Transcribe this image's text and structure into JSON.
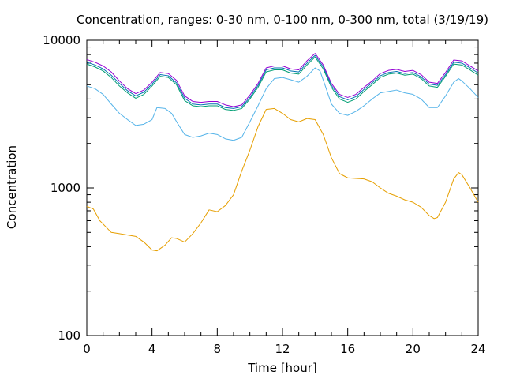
{
  "chart_data": {
    "type": "line",
    "title": "Concentration, ranges: 0-30 nm, 0-100 nm, 0-300 nm, total (3/19/19)",
    "xlabel": "Time [hour]",
    "ylabel": "Concentration",
    "xlim": [
      0,
      24
    ],
    "ylim": [
      100,
      10000
    ],
    "yscale": "log",
    "x_ticks": [
      0,
      4,
      8,
      12,
      16,
      20,
      24
    ],
    "y_ticks": [
      100,
      1000,
      10000
    ],
    "grid": false,
    "legend": "none",
    "series": [
      {
        "color": "#e69f00",
        "x": [
          0,
          0.4,
          0.8,
          1.5,
          2,
          3,
          3.5,
          4,
          4.3,
          4.8,
          5.2,
          5.5,
          6,
          6.5,
          7,
          7.5,
          8,
          8.5,
          9,
          9.5,
          10,
          10.5,
          11,
          11.5,
          12,
          12.5,
          13,
          13.5,
          14,
          14.5,
          15,
          15.5,
          16,
          16.5,
          17,
          17.5,
          18,
          18.5,
          19,
          19.5,
          20,
          20.5,
          21,
          21.3,
          21.5,
          22,
          22.5,
          22.8,
          23,
          23.5,
          24
        ],
        "y": [
          750,
          720,
          600,
          500,
          490,
          470,
          430,
          380,
          375,
          410,
          460,
          455,
          430,
          490,
          580,
          710,
          690,
          760,
          900,
          1300,
          1800,
          2600,
          3400,
          3450,
          3200,
          2900,
          2800,
          2950,
          2900,
          2300,
          1600,
          1250,
          1170,
          1160,
          1150,
          1100,
          1000,
          920,
          880,
          830,
          800,
          740,
          650,
          620,
          630,
          800,
          1150,
          1270,
          1230,
          1000,
          800
        ]
      },
      {
        "color": "#56b4e9",
        "x": [
          0,
          0.5,
          1,
          1.5,
          2,
          2.5,
          3,
          3.5,
          4,
          4.3,
          4.8,
          5.2,
          5.6,
          6,
          6.5,
          7,
          7.5,
          8,
          8.5,
          9,
          9.5,
          10,
          10.5,
          11,
          11.5,
          12,
          12.5,
          13,
          13.5,
          14,
          14.3,
          14.6,
          15,
          15.5,
          16,
          16.5,
          17,
          17.5,
          18,
          18.5,
          19,
          19.5,
          20,
          20.5,
          21,
          21.5,
          22,
          22.5,
          22.8,
          23,
          23.5,
          24
        ],
        "y": [
          4900,
          4700,
          4300,
          3700,
          3200,
          2900,
          2650,
          2700,
          2900,
          3500,
          3450,
          3200,
          2700,
          2300,
          2200,
          2250,
          2350,
          2300,
          2150,
          2100,
          2200,
          2800,
          3600,
          4700,
          5500,
          5600,
          5400,
          5200,
          5700,
          6500,
          6200,
          5000,
          3700,
          3200,
          3100,
          3300,
          3600,
          4000,
          4400,
          4500,
          4600,
          4400,
          4300,
          4000,
          3500,
          3500,
          4200,
          5200,
          5500,
          5300,
          4700,
          4100
        ]
      },
      {
        "color": "#009e73",
        "x": [
          0,
          0.5,
          1,
          1.5,
          2,
          2.5,
          3,
          3.5,
          4,
          4.5,
          5,
          5.5,
          6,
          6.5,
          7,
          7.5,
          8,
          8.5,
          9,
          9.5,
          10,
          10.5,
          11,
          11.5,
          12,
          12.5,
          13,
          13.5,
          14,
          14.5,
          15,
          15.5,
          16,
          16.5,
          17,
          17.5,
          18,
          18.5,
          19,
          19.5,
          20,
          20.5,
          21,
          21.5,
          22,
          22.5,
          23,
          23.5,
          24
        ],
        "y": [
          6900,
          6600,
          6200,
          5600,
          4900,
          4400,
          4050,
          4300,
          4900,
          5700,
          5600,
          5000,
          3900,
          3600,
          3550,
          3600,
          3600,
          3400,
          3350,
          3450,
          4000,
          4800,
          6100,
          6300,
          6300,
          6000,
          5900,
          6800,
          7700,
          6400,
          4800,
          4000,
          3800,
          4000,
          4500,
          5000,
          5600,
          5900,
          6000,
          5800,
          5900,
          5500,
          4900,
          4800,
          5700,
          6900,
          6800,
          6300,
          5800
        ]
      },
      {
        "color": "#0072b2",
        "x": [
          0,
          0.5,
          1,
          1.5,
          2,
          2.5,
          3,
          3.5,
          4,
          4.5,
          5,
          5.5,
          6,
          6.5,
          7,
          7.5,
          8,
          8.5,
          9,
          9.5,
          10,
          10.5,
          11,
          11.5,
          12,
          12.5,
          13,
          13.5,
          14,
          14.5,
          15,
          15.5,
          16,
          16.5,
          17,
          17.5,
          18,
          18.5,
          19,
          19.5,
          20,
          20.5,
          21,
          21.5,
          22,
          22.5,
          23,
          23.5,
          24
        ],
        "y": [
          7100,
          6800,
          6400,
          5800,
          5100,
          4550,
          4200,
          4450,
          5050,
          5850,
          5750,
          5150,
          4050,
          3700,
          3650,
          3700,
          3700,
          3500,
          3450,
          3550,
          4100,
          4950,
          6300,
          6500,
          6500,
          6200,
          6100,
          7000,
          7900,
          6600,
          4950,
          4150,
          3950,
          4150,
          4650,
          5150,
          5750,
          6050,
          6150,
          5950,
          6050,
          5650,
          5050,
          4950,
          5850,
          7100,
          7000,
          6500,
          6000
        ]
      },
      {
        "color": "#9400d3",
        "x": [
          0,
          0.5,
          1,
          1.5,
          2,
          2.5,
          3,
          3.5,
          4,
          4.5,
          5,
          5.5,
          6,
          6.5,
          7,
          7.5,
          8,
          8.5,
          9,
          9.5,
          10,
          10.5,
          11,
          11.5,
          12,
          12.5,
          13,
          13.5,
          14,
          14.5,
          15,
          15.5,
          16,
          16.5,
          17,
          17.5,
          18,
          18.5,
          19,
          19.5,
          20,
          20.5,
          21,
          21.5,
          22,
          22.5,
          23,
          23.5,
          24
        ],
        "y": [
          7400,
          7100,
          6700,
          6100,
          5300,
          4700,
          4350,
          4600,
          5200,
          6050,
          5950,
          5350,
          4200,
          3850,
          3800,
          3850,
          3850,
          3650,
          3550,
          3650,
          4250,
          5100,
          6500,
          6700,
          6700,
          6400,
          6300,
          7250,
          8150,
          6800,
          5100,
          4300,
          4100,
          4300,
          4800,
          5300,
          5950,
          6250,
          6350,
          6150,
          6250,
          5850,
          5200,
          5100,
          6050,
          7350,
          7250,
          6700,
          6200
        ]
      }
    ]
  }
}
